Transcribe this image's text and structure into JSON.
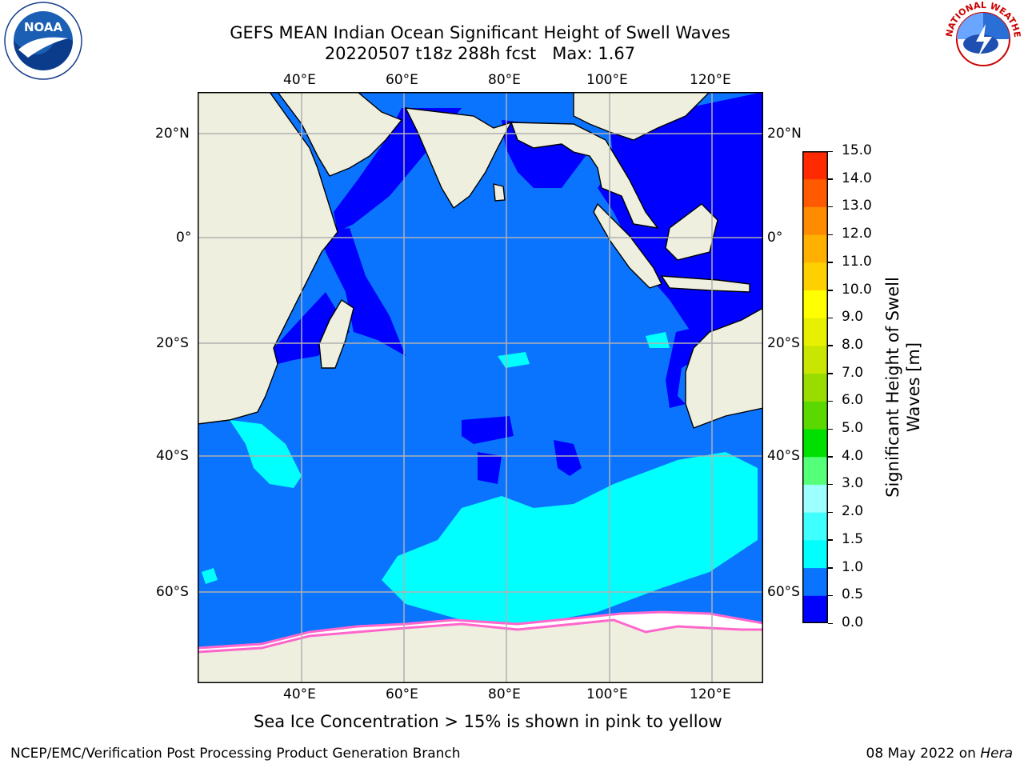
{
  "title": {
    "line1": "GEFS MEAN Indian Ocean Significant Height of Swell Waves",
    "line2": "20220507 t18z 288h fcst   Max: 1.67"
  },
  "logos": {
    "left": {
      "name": "noaa-logo",
      "text": "NOAA"
    },
    "right": {
      "name": "nws-logo",
      "text": "NATIONAL WEATHER SERVICE"
    }
  },
  "axes": {
    "lon_ticks": [
      "40°E",
      "60°E",
      "80°E",
      "100°E",
      "120°E"
    ],
    "lat_ticks": [
      "20°N",
      "0°",
      "20°S",
      "40°S",
      "60°S"
    ]
  },
  "colorbar": {
    "label": "Significant Height of Swell Waves [m]",
    "ticks": [
      "0.0",
      "0.5",
      "1.0",
      "1.5",
      "2.0",
      "3.0",
      "4.0",
      "5.0",
      "6.0",
      "7.0",
      "8.0",
      "9.0",
      "10.0",
      "11.0",
      "12.0",
      "13.0",
      "14.0",
      "15.0"
    ],
    "colors": [
      "#0000ff",
      "#0b74ff",
      "#00ffff",
      "#40ffff",
      "#9effff",
      "#55ff7a",
      "#00e000",
      "#5ad800",
      "#99dd00",
      "#c8e600",
      "#e7f000",
      "#ffff00",
      "#ffd000",
      "#ffb000",
      "#ff8c00",
      "#ff5a00",
      "#ff2a00"
    ]
  },
  "colors": {
    "land": "#efefdf",
    "ocean_mid": "#0b74ff",
    "ocean_low": "#0000ff",
    "swell_high": "#00ffff",
    "ice": "#ffffff",
    "ice_edge": "#ff66cc",
    "grid": "#b0b0b0"
  },
  "caption": "Sea Ice Concentration > 15% is shown in pink to yellow",
  "footer": {
    "left": "NCEP/EMC/Verification Post Processing Product Generation Branch",
    "right_date": "08 May 2022 on ",
    "right_machine": "Hera"
  }
}
